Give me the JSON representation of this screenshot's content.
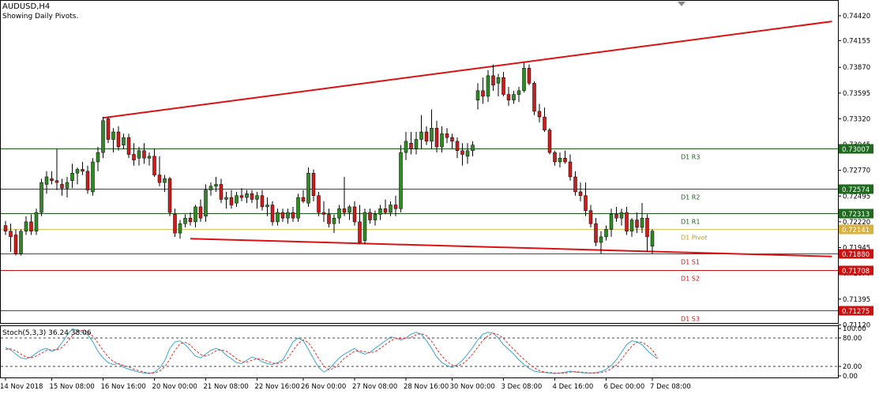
{
  "header": {
    "symbol": "AUDUSD,H4",
    "subtitle": "Showing Daily Pivots."
  },
  "indicator": {
    "label": "Stoch(5,3,3) 36.24 38.06",
    "main_value": 36.24,
    "signal_value": 38.06,
    "ticks": [
      "100.00",
      "80.00",
      "20.00",
      "0.00"
    ]
  },
  "colors": {
    "bull": "#2f8a24",
    "bear": "#c81e1e",
    "grid_green": "#1a5e1a",
    "pivot_line": "#d8c060",
    "support_red": "#cc1111",
    "trendline": "#dd1111",
    "stoch_main": "#3aa6c8",
    "stoch_signal": "#e03030"
  },
  "chart_data": {
    "type": "candlestick",
    "symbol": "AUDUSD",
    "timeframe": "H4",
    "ylim": [
      0.7114,
      0.7458
    ],
    "y_ticks": [
      "0.74420",
      "0.74155",
      "0.73870",
      "0.73595",
      "0.73320",
      "0.73045",
      "0.72770",
      "0.72495",
      "0.72220",
      "0.71945",
      "0.71670",
      "0.71395",
      "0.71120"
    ],
    "x_tick_labels": [
      "14 Nov 2018",
      "15 Nov 08:00",
      "16 Nov 16:00",
      "20 Nov 00:00",
      "21 Nov 08:00",
      "22 Nov 16:00",
      "26 Nov 00:00",
      "27 Nov 08:00",
      "28 Nov 16:00",
      "30 Nov 00:00",
      "3 Dec 08:00",
      "4 Dec 16:00",
      "6 Dec 00:00",
      "7 Dec 08:00"
    ],
    "x_tick_index": [
      0,
      9,
      19,
      29,
      39,
      49,
      58,
      68,
      78,
      87,
      97,
      107,
      117,
      126
    ],
    "pivot_levels": [
      {
        "name": "D1 R3",
        "label": "D1 R3",
        "price": "0.73007",
        "value": 0.73007,
        "kind": "resistance"
      },
      {
        "name": "D1 R2",
        "label": "D1 R2",
        "price": "0.72574",
        "value": 0.72574,
        "kind": "resistance"
      },
      {
        "name": "D1 R1",
        "label": "D1 R1",
        "price": "0.72313",
        "value": 0.72313,
        "kind": "resistance"
      },
      {
        "name": "D1 Pivot",
        "label": "D1 Pivot",
        "price": "0.72141",
        "value": 0.72141,
        "kind": "pivot"
      },
      {
        "name": "D1 S1",
        "label": "D1 S1",
        "price": "0.71880",
        "value": 0.7188,
        "kind": "support"
      },
      {
        "name": "D1 S2",
        "label": "D1 S2",
        "price": "0.71708",
        "value": 0.71708,
        "kind": "support"
      },
      {
        "name": "D1 S3",
        "label": "D1 S3",
        "price": "0.71275",
        "value": 0.71275,
        "kind": "support"
      }
    ],
    "trendlines": [
      {
        "from": {
          "i": 19,
          "price": 0.7333
        },
        "to": {
          "i": 161,
          "price": 0.7436
        }
      },
      {
        "from": {
          "i": 36,
          "price": 0.7204
        },
        "to": {
          "i": 161,
          "price": 0.7185
        }
      }
    ],
    "candles": [
      [
        0.7218,
        0.7223,
        0.7208,
        0.7212
      ],
      [
        0.7212,
        0.722,
        0.719,
        0.7206
      ],
      [
        0.7208,
        0.7214,
        0.7186,
        0.7188
      ],
      [
        0.7188,
        0.7214,
        0.7186,
        0.7212
      ],
      [
        0.7212,
        0.7228,
        0.7208,
        0.7222
      ],
      [
        0.7222,
        0.723,
        0.7208,
        0.7212
      ],
      [
        0.7212,
        0.7236,
        0.7208,
        0.7232
      ],
      [
        0.7232,
        0.7268,
        0.7228,
        0.7264
      ],
      [
        0.7262,
        0.7276,
        0.7252,
        0.727
      ],
      [
        0.7268,
        0.7276,
        0.7262,
        0.7266
      ],
      [
        0.7266,
        0.73,
        0.7256,
        0.7264
      ],
      [
        0.7262,
        0.7268,
        0.725,
        0.7258
      ],
      [
        0.7258,
        0.727,
        0.7248,
        0.7264
      ],
      [
        0.7266,
        0.7284,
        0.7258,
        0.7274
      ],
      [
        0.7274,
        0.728,
        0.7262,
        0.7278
      ],
      [
        0.7278,
        0.7286,
        0.7272,
        0.7276
      ],
      [
        0.7276,
        0.7282,
        0.7252,
        0.7256
      ],
      [
        0.7254,
        0.729,
        0.725,
        0.7286
      ],
      [
        0.7286,
        0.7302,
        0.7276,
        0.7296
      ],
      [
        0.7296,
        0.7334,
        0.729,
        0.733
      ],
      [
        0.7332,
        0.7334,
        0.7306,
        0.731
      ],
      [
        0.731,
        0.7322,
        0.7296,
        0.7318
      ],
      [
        0.7318,
        0.7324,
        0.7298,
        0.7302
      ],
      [
        0.7304,
        0.7316,
        0.73,
        0.7312
      ],
      [
        0.7312,
        0.7316,
        0.729,
        0.7294
      ],
      [
        0.7294,
        0.7306,
        0.7282,
        0.7288
      ],
      [
        0.729,
        0.7302,
        0.7282,
        0.7298
      ],
      [
        0.7298,
        0.7306,
        0.7284,
        0.729
      ],
      [
        0.729,
        0.7296,
        0.7282,
        0.7292
      ],
      [
        0.7292,
        0.73,
        0.727,
        0.7272
      ],
      [
        0.7272,
        0.7292,
        0.726,
        0.7264
      ],
      [
        0.7264,
        0.7272,
        0.7254,
        0.7268
      ],
      [
        0.7268,
        0.727,
        0.7228,
        0.7232
      ],
      [
        0.723,
        0.7236,
        0.7206,
        0.721
      ],
      [
        0.721,
        0.7224,
        0.7204,
        0.722
      ],
      [
        0.722,
        0.723,
        0.7216,
        0.7226
      ],
      [
        0.7226,
        0.7232,
        0.7218,
        0.7222
      ],
      [
        0.7222,
        0.724,
        0.7216,
        0.7238
      ],
      [
        0.7238,
        0.7246,
        0.7222,
        0.7226
      ],
      [
        0.7228,
        0.7262,
        0.7222,
        0.7256
      ],
      [
        0.7256,
        0.7264,
        0.725,
        0.726
      ],
      [
        0.726,
        0.727,
        0.7254,
        0.7262
      ],
      [
        0.7262,
        0.7268,
        0.7242,
        0.7246
      ],
      [
        0.7246,
        0.7254,
        0.7236,
        0.7248
      ],
      [
        0.7248,
        0.7256,
        0.7236,
        0.724
      ],
      [
        0.7242,
        0.7254,
        0.7238,
        0.725
      ],
      [
        0.725,
        0.7258,
        0.7244,
        0.7248
      ],
      [
        0.7248,
        0.7256,
        0.7242,
        0.7252
      ],
      [
        0.7252,
        0.7256,
        0.7242,
        0.7246
      ],
      [
        0.7246,
        0.7254,
        0.7236,
        0.725
      ],
      [
        0.725,
        0.7256,
        0.7234,
        0.7238
      ],
      [
        0.7238,
        0.7248,
        0.7228,
        0.724
      ],
      [
        0.724,
        0.7244,
        0.7218,
        0.7222
      ],
      [
        0.7222,
        0.7236,
        0.7218,
        0.7232
      ],
      [
        0.7232,
        0.7236,
        0.7222,
        0.7226
      ],
      [
        0.7226,
        0.7236,
        0.722,
        0.7232
      ],
      [
        0.7232,
        0.7238,
        0.7222,
        0.7226
      ],
      [
        0.7226,
        0.7252,
        0.7222,
        0.7248
      ],
      [
        0.7248,
        0.7256,
        0.7242,
        0.7244
      ],
      [
        0.7242,
        0.728,
        0.7238,
        0.7274
      ],
      [
        0.7274,
        0.7278,
        0.7244,
        0.725
      ],
      [
        0.725,
        0.7254,
        0.7228,
        0.7232
      ],
      [
        0.7232,
        0.7244,
        0.7222,
        0.723
      ],
      [
        0.723,
        0.7236,
        0.7216,
        0.722
      ],
      [
        0.722,
        0.723,
        0.721,
        0.7226
      ],
      [
        0.7226,
        0.724,
        0.722,
        0.7236
      ],
      [
        0.7236,
        0.727,
        0.7228,
        0.7232
      ],
      [
        0.7232,
        0.724,
        0.7224,
        0.7238
      ],
      [
        0.7238,
        0.7244,
        0.7218,
        0.7222
      ],
      [
        0.7222,
        0.724,
        0.7198,
        0.72
      ],
      [
        0.7202,
        0.7236,
        0.7198,
        0.7232
      ],
      [
        0.7232,
        0.7236,
        0.722,
        0.7224
      ],
      [
        0.7224,
        0.7234,
        0.7218,
        0.723
      ],
      [
        0.723,
        0.724,
        0.7224,
        0.7236
      ],
      [
        0.7236,
        0.7246,
        0.723,
        0.7232
      ],
      [
        0.7232,
        0.7244,
        0.7228,
        0.724
      ],
      [
        0.724,
        0.725,
        0.7228,
        0.7236
      ],
      [
        0.7236,
        0.7304,
        0.7232,
        0.7296
      ],
      [
        0.7296,
        0.7318,
        0.7288,
        0.7308
      ],
      [
        0.7306,
        0.7318,
        0.7294,
        0.73
      ],
      [
        0.73,
        0.7318,
        0.7294,
        0.731
      ],
      [
        0.731,
        0.7336,
        0.73,
        0.7318
      ],
      [
        0.7318,
        0.7324,
        0.7304,
        0.7308
      ],
      [
        0.7308,
        0.7342,
        0.73,
        0.7322
      ],
      [
        0.7322,
        0.733,
        0.7296,
        0.7302
      ],
      [
        0.7302,
        0.7324,
        0.7296,
        0.7316
      ],
      [
        0.7316,
        0.7322,
        0.7306,
        0.7312
      ],
      [
        0.7312,
        0.7316,
        0.73,
        0.7308
      ],
      [
        0.7308,
        0.7312,
        0.729,
        0.7298
      ],
      [
        0.7298,
        0.7306,
        0.7282,
        0.7294
      ],
      [
        0.7292,
        0.7306,
        0.7284,
        0.7298
      ],
      [
        0.7298,
        0.7308,
        0.7292,
        0.7304
      ],
      [
        0.7352,
        0.737,
        0.7342,
        0.7362
      ],
      [
        0.7362,
        0.7376,
        0.7348,
        0.7356
      ],
      [
        0.7356,
        0.7384,
        0.735,
        0.7378
      ],
      [
        0.7378,
        0.739,
        0.7362,
        0.7368
      ],
      [
        0.737,
        0.738,
        0.7356,
        0.7376
      ],
      [
        0.7376,
        0.7382,
        0.7356,
        0.7358
      ],
      [
        0.7358,
        0.7366,
        0.7346,
        0.7352
      ],
      [
        0.7352,
        0.7362,
        0.7348,
        0.7358
      ],
      [
        0.7358,
        0.7366,
        0.735,
        0.7362
      ],
      [
        0.7362,
        0.7392,
        0.736,
        0.7386
      ],
      [
        0.7386,
        0.739,
        0.7368,
        0.737
      ],
      [
        0.737,
        0.7372,
        0.7336,
        0.734
      ],
      [
        0.734,
        0.7348,
        0.7328,
        0.7334
      ],
      [
        0.7334,
        0.7344,
        0.7318,
        0.732
      ],
      [
        0.732,
        0.7322,
        0.7294,
        0.7296
      ],
      [
        0.7296,
        0.7298,
        0.7282,
        0.7286
      ],
      [
        0.7286,
        0.7296,
        0.728,
        0.729
      ],
      [
        0.729,
        0.7298,
        0.7284,
        0.7286
      ],
      [
        0.7286,
        0.7294,
        0.7266,
        0.727
      ],
      [
        0.727,
        0.7276,
        0.725,
        0.7254
      ],
      [
        0.7254,
        0.7264,
        0.7244,
        0.725
      ],
      [
        0.725,
        0.7264,
        0.7228,
        0.7234
      ],
      [
        0.7234,
        0.724,
        0.7216,
        0.722
      ],
      [
        0.722,
        0.7226,
        0.7196,
        0.72
      ],
      [
        0.72,
        0.7212,
        0.7188,
        0.7206
      ],
      [
        0.7206,
        0.7218,
        0.7202,
        0.7214
      ],
      [
        0.7214,
        0.7236,
        0.7206,
        0.723
      ],
      [
        0.723,
        0.7238,
        0.7222,
        0.7226
      ],
      [
        0.7226,
        0.7236,
        0.7218,
        0.7232
      ],
      [
        0.7232,
        0.7238,
        0.7208,
        0.7212
      ],
      [
        0.7212,
        0.7226,
        0.7206,
        0.7224
      ],
      [
        0.7224,
        0.7232,
        0.721,
        0.7216
      ],
      [
        0.7216,
        0.7242,
        0.721,
        0.7226
      ],
      [
        0.7226,
        0.723,
        0.719,
        0.7206
      ],
      [
        0.7196,
        0.7214,
        0.7188,
        0.7212
      ]
    ],
    "stoch_main": [
      60,
      55,
      46,
      38,
      36,
      40,
      48,
      55,
      58,
      52,
      56,
      70,
      86,
      99,
      97,
      92,
      87,
      72,
      52,
      38,
      28,
      24,
      26,
      18,
      14,
      11,
      8,
      6,
      5,
      8,
      16,
      32,
      58,
      72,
      74,
      66,
      54,
      42,
      38,
      46,
      54,
      58,
      54,
      44,
      36,
      28,
      26,
      33,
      40,
      36,
      30,
      26,
      24,
      28,
      34,
      52,
      72,
      80,
      74,
      56,
      36,
      18,
      8,
      14,
      26,
      38,
      46,
      52,
      58,
      50,
      46,
      50,
      58,
      66,
      74,
      82,
      80,
      76,
      80,
      88,
      92,
      88,
      74,
      58,
      40,
      28,
      22,
      18,
      24,
      33,
      46,
      60,
      76,
      88,
      92,
      90,
      80,
      66,
      56,
      46,
      34,
      24,
      16,
      10,
      8,
      7,
      6,
      5,
      6,
      8,
      10,
      8,
      7,
      6,
      6,
      7,
      9,
      14,
      22,
      34,
      50,
      66,
      74,
      72,
      66,
      54,
      44,
      36
    ],
    "stoch_signal": [
      56,
      57,
      53,
      46,
      40,
      38,
      42,
      48,
      54,
      55,
      55,
      60,
      71,
      85,
      94,
      96,
      92,
      84,
      70,
      54,
      40,
      30,
      26,
      22,
      19,
      14,
      11,
      8,
      6,
      6,
      10,
      19,
      35,
      54,
      68,
      71,
      65,
      54,
      45,
      42,
      46,
      53,
      55,
      52,
      45,
      36,
      30,
      29,
      33,
      36,
      35,
      31,
      27,
      26,
      29,
      38,
      53,
      68,
      76,
      70,
      55,
      37,
      21,
      13,
      16,
      26,
      37,
      45,
      52,
      53,
      51,
      49,
      51,
      58,
      66,
      74,
      79,
      79,
      79,
      81,
      87,
      89,
      85,
      73,
      57,
      42,
      30,
      23,
      21,
      25,
      34,
      46,
      61,
      75,
      85,
      90,
      87,
      79,
      67,
      56,
      45,
      35,
      25,
      17,
      11,
      8,
      7,
      6,
      6,
      6,
      8,
      9,
      8,
      7,
      6,
      6,
      7,
      10,
      15,
      23,
      35,
      50,
      63,
      71,
      71,
      64,
      55,
      38
    ]
  }
}
